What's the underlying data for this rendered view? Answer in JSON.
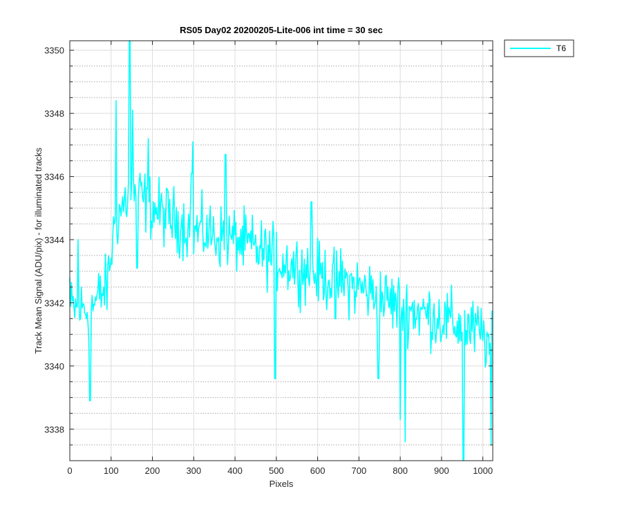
{
  "chart_data": {
    "type": "line",
    "title": "RS05 Day02 20200205-Lite-006 int time = 30 sec",
    "xlabel": "Pixels",
    "ylabel": "Track Mean Signal (ADU/pix) - for illuminated tracks",
    "xlim": [
      0,
      1024
    ],
    "ylim": [
      3337,
      3350.3
    ],
    "xticks": [
      0,
      100,
      200,
      300,
      400,
      500,
      600,
      700,
      800,
      900,
      1000
    ],
    "yticks": [
      3338,
      3340,
      3342,
      3344,
      3346,
      3348,
      3350
    ],
    "yminor_step": 0.5,
    "grid": true,
    "minor_grid": true,
    "legend_position": "outside-top-right",
    "series": [
      {
        "name": "T6",
        "color": "#00ffff",
        "anchors": [
          {
            "x": 0,
            "y": 3341.8
          },
          {
            "x": 50,
            "y": 3341.8
          },
          {
            "x": 90,
            "y": 3342.5
          },
          {
            "x": 110,
            "y": 3344.6
          },
          {
            "x": 150,
            "y": 3345.6
          },
          {
            "x": 200,
            "y": 3345.0
          },
          {
            "x": 300,
            "y": 3344.3
          },
          {
            "x": 400,
            "y": 3344.0
          },
          {
            "x": 500,
            "y": 3343.4
          },
          {
            "x": 600,
            "y": 3342.9
          },
          {
            "x": 700,
            "y": 3342.5
          },
          {
            "x": 800,
            "y": 3341.9
          },
          {
            "x": 900,
            "y": 3341.5
          },
          {
            "x": 1000,
            "y": 3341.0
          },
          {
            "x": 1023,
            "y": 3340.5
          }
        ],
        "noise_amplitude": 1.5,
        "sample_step": 2,
        "peaks": [
          {
            "x": 0,
            "y": 3342.8
          },
          {
            "x": 20,
            "y": 3344.0
          },
          {
            "x": 49,
            "y": 3338.9
          },
          {
            "x": 112,
            "y": 3348.4
          },
          {
            "x": 145,
            "y": 3350.3
          },
          {
            "x": 152,
            "y": 3348.1
          },
          {
            "x": 163,
            "y": 3343.1
          },
          {
            "x": 190,
            "y": 3347.2
          },
          {
            "x": 295,
            "y": 3346.1
          },
          {
            "x": 297,
            "y": 3347.1
          },
          {
            "x": 377,
            "y": 3346.7
          },
          {
            "x": 497,
            "y": 3339.6
          },
          {
            "x": 585,
            "y": 3345.2
          },
          {
            "x": 643,
            "y": 3341.5
          },
          {
            "x": 747,
            "y": 3339.6
          },
          {
            "x": 800,
            "y": 3338.3
          },
          {
            "x": 812,
            "y": 3337.6
          },
          {
            "x": 953,
            "y": 3336.9
          },
          {
            "x": 1020,
            "y": 3337.5
          }
        ]
      }
    ]
  }
}
